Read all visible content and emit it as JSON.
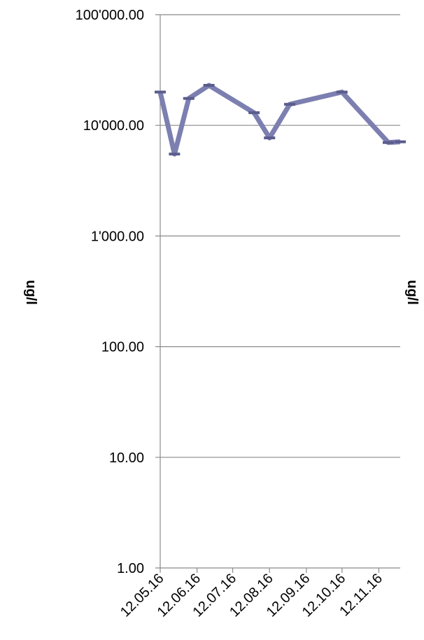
{
  "chart_data": {
    "type": "line",
    "title": "",
    "ylabel_left": "ug/l",
    "ylabel_right": "ug/l",
    "yscale": "log",
    "ylim": [
      1,
      100000
    ],
    "grid": true,
    "y_ticks": [
      {
        "value": 1,
        "label": "1.00"
      },
      {
        "value": 10,
        "label": "10.00"
      },
      {
        "value": 100,
        "label": "100.00"
      },
      {
        "value": 1000,
        "label": "1'000.00"
      },
      {
        "value": 10000,
        "label": "10'000.00"
      },
      {
        "value": 100000,
        "label": "100'000.00"
      }
    ],
    "xlim": [
      "2016-05-12",
      "2016-11-30"
    ],
    "x_ticks": [
      {
        "date": "2016-05-12",
        "label": "12.05.16"
      },
      {
        "date": "2016-06-12",
        "label": "12.06.16"
      },
      {
        "date": "2016-07-12",
        "label": "12.07.16"
      },
      {
        "date": "2016-08-12",
        "label": "12.08.16"
      },
      {
        "date": "2016-09-12",
        "label": "12.09.16"
      },
      {
        "date": "2016-10-12",
        "label": "12.10.16"
      },
      {
        "date": "2016-11-12",
        "label": "12.11.16"
      }
    ],
    "series": [
      {
        "color": "#7C7FB0",
        "points": [
          {
            "x": "2016-05-12",
            "y": 20000
          },
          {
            "x": "2016-05-24",
            "y": 5500
          },
          {
            "x": "2016-06-05",
            "y": 17500
          },
          {
            "x": "2016-06-22",
            "y": 23000
          },
          {
            "x": "2016-07-30",
            "y": 13000
          },
          {
            "x": "2016-08-12",
            "y": 7700
          },
          {
            "x": "2016-08-29",
            "y": 15500
          },
          {
            "x": "2016-10-12",
            "y": 20000
          },
          {
            "x": "2016-11-20",
            "y": 7000
          },
          {
            "x": "2016-11-30",
            "y": 7100
          }
        ]
      }
    ]
  }
}
